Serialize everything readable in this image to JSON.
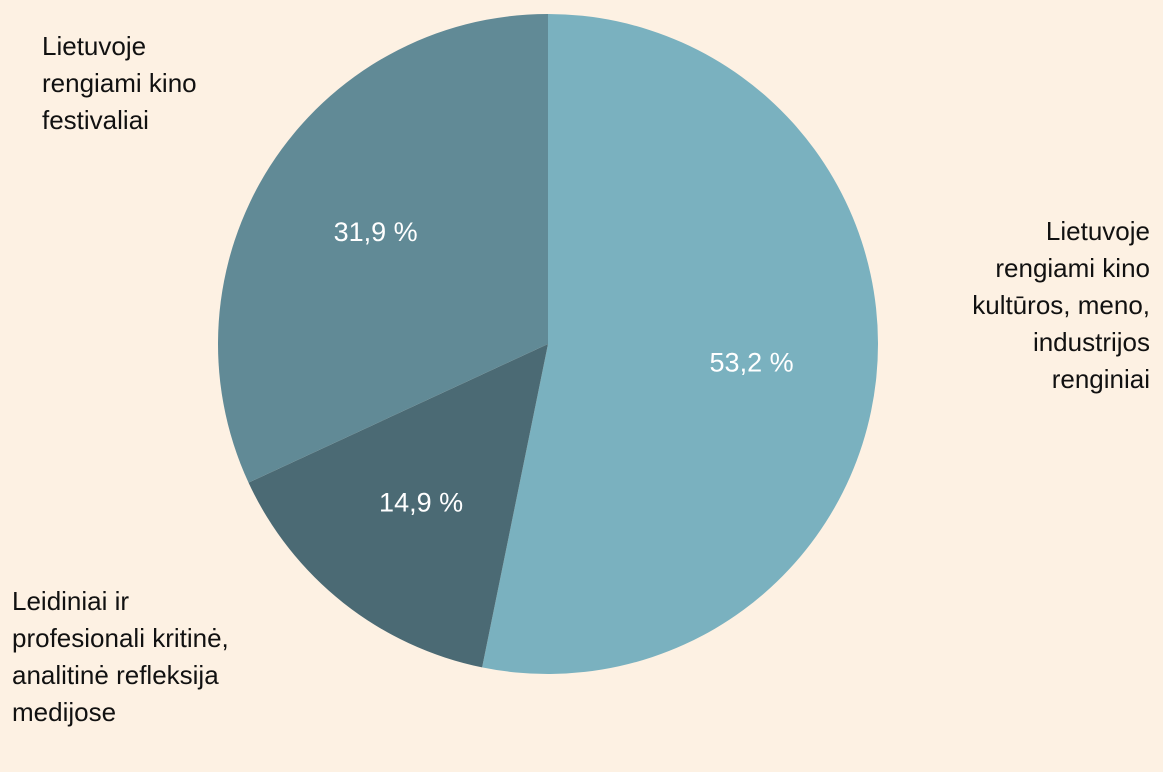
{
  "chart_data": {
    "type": "pie",
    "categories": [
      "Lietuvoje rengiami kino kultūros, meno, industrijos renginiai",
      "Leidiniai ir profesionali kritinė, analitinė refleksija medijose",
      "Lietuvoje rengiami kino festivaliai"
    ],
    "values": [
      53.2,
      14.9,
      31.9
    ],
    "value_labels": [
      "53,2 %",
      "14,9 %",
      "31,9 %"
    ],
    "colors": [
      "#7ab1bf",
      "#4b6a74",
      "#618a96"
    ]
  }
}
